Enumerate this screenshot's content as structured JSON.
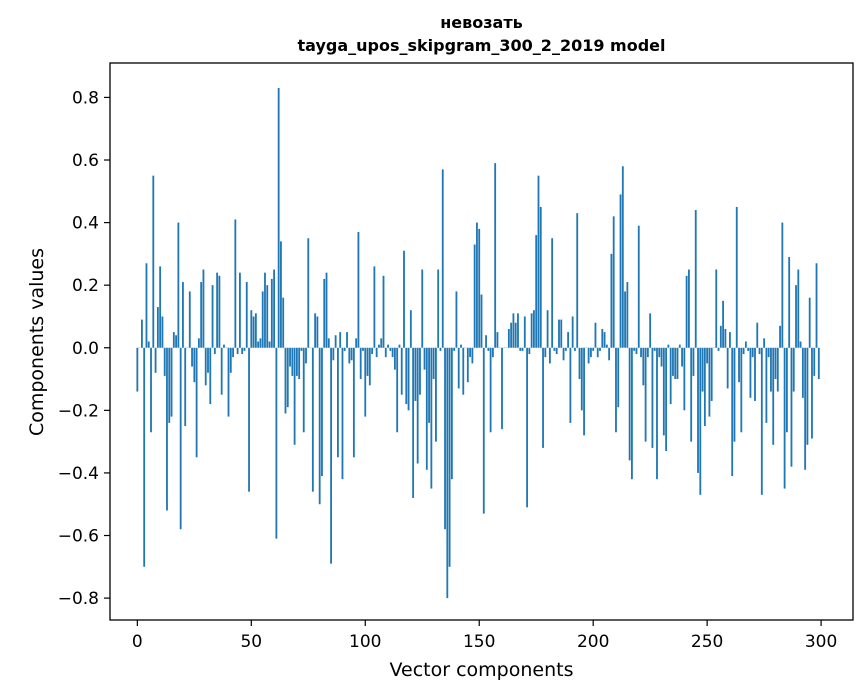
{
  "chart_data": {
    "type": "bar",
    "title_lines": [
      "невозать",
      "tayga_upos_skipgram_300_2_2019 model"
    ],
    "xlabel": "Vector components",
    "ylabel": "Components values",
    "xlim": [
      -12,
      314
    ],
    "ylim": [
      -0.87,
      0.91
    ],
    "xticks": [
      0,
      50,
      100,
      150,
      200,
      250,
      300
    ],
    "xtick_labels": [
      "0",
      "50",
      "100",
      "150",
      "200",
      "250",
      "300"
    ],
    "yticks": [
      -0.8,
      -0.6,
      -0.4,
      -0.2,
      0.0,
      0.2,
      0.4,
      0.6,
      0.8
    ],
    "ytick_labels": [
      "−0.8",
      "−0.6",
      "−0.4",
      "−0.2",
      "0.0",
      "0.2",
      "0.4",
      "0.6",
      "0.8"
    ],
    "grid": false,
    "bar_color": "#1f77b4",
    "values": [
      -0.14,
      0.0,
      0.09,
      -0.7,
      0.27,
      0.02,
      -0.27,
      0.55,
      -0.08,
      0.13,
      0.26,
      0.1,
      -0.09,
      -0.52,
      -0.24,
      -0.22,
      0.05,
      0.04,
      0.4,
      -0.58,
      0.21,
      -0.25,
      0.0,
      0.18,
      -0.06,
      -0.11,
      -0.35,
      0.03,
      0.21,
      0.25,
      -0.12,
      -0.08,
      -0.18,
      0.2,
      -0.02,
      0.24,
      0.23,
      -0.15,
      0.01,
      0.0,
      -0.22,
      -0.08,
      -0.03,
      0.41,
      -0.02,
      0.24,
      -0.02,
      -0.01,
      0.21,
      -0.46,
      0.12,
      0.1,
      0.11,
      0.02,
      0.03,
      0.18,
      0.24,
      0.2,
      0.02,
      0.22,
      0.25,
      -0.61,
      0.83,
      0.34,
      0.16,
      -0.21,
      -0.19,
      -0.06,
      -0.09,
      -0.31,
      -0.09,
      -0.1,
      -0.01,
      -0.27,
      -0.05,
      0.35,
      0.0,
      -0.46,
      0.11,
      0.1,
      -0.5,
      -0.41,
      0.22,
      0.24,
      0.03,
      -0.69,
      -0.04,
      0.04,
      -0.35,
      0.05,
      -0.42,
      -0.01,
      0.05,
      -0.05,
      -0.04,
      -0.35,
      0.03,
      0.37,
      -0.1,
      -0.01,
      -0.22,
      -0.09,
      -0.12,
      -0.02,
      0.26,
      -0.03,
      0.01,
      0.03,
      0.23,
      -0.03,
      0.01,
      -0.01,
      -0.03,
      -0.07,
      -0.27,
      0.01,
      -0.15,
      0.31,
      -0.18,
      -0.2,
      0.12,
      -0.48,
      -0.17,
      -0.37,
      -0.15,
      0.25,
      -0.07,
      -0.39,
      -0.24,
      -0.45,
      -0.1,
      -0.3,
      0.25,
      -0.01,
      0.57,
      -0.58,
      -0.8,
      -0.7,
      -0.42,
      -0.01,
      0.18,
      -0.13,
      0.01,
      -0.15,
      0.0,
      -0.11,
      -0.03,
      -0.05,
      0.33,
      0.4,
      0.38,
      0.17,
      -0.53,
      0.04,
      -0.01,
      -0.27,
      -0.03,
      0.59,
      0.05,
      0.0,
      -0.26,
      0.0,
      0.0,
      0.06,
      0.08,
      0.11,
      0.08,
      0.11,
      -0.01,
      -0.01,
      0.1,
      -0.51,
      -0.02,
      0.11,
      0.12,
      0.36,
      0.55,
      0.45,
      -0.32,
      -0.03,
      0.12,
      -0.05,
      0.35,
      -0.01,
      -0.02,
      0.09,
      0.09,
      -0.04,
      -0.01,
      0.05,
      -0.24,
      0.1,
      -0.01,
      0.43,
      -0.1,
      -0.2,
      -0.28,
      0.0,
      -0.05,
      -0.03,
      -0.01,
      0.08,
      -0.03,
      -0.01,
      0.06,
      0.05,
      0.01,
      -0.04,
      0.3,
      0.42,
      -0.27,
      -0.19,
      0.49,
      0.58,
      0.18,
      0.21,
      -0.36,
      -0.42,
      -0.01,
      -0.02,
      0.39,
      -0.03,
      -0.12,
      -0.3,
      -0.03,
      0.11,
      -0.32,
      -0.01,
      -0.42,
      -0.03,
      -0.06,
      -0.28,
      -0.33,
      0.01,
      -0.18,
      -0.09,
      -0.1,
      -0.1,
      0.01,
      -0.06,
      -0.2,
      0.23,
      0.25,
      -0.3,
      -0.09,
      0.44,
      -0.4,
      -0.47,
      -0.14,
      -0.25,
      -0.05,
      -0.22,
      -0.17,
      0.0,
      0.25,
      -0.01,
      0.07,
      0.15,
      0.06,
      -0.13,
      0.05,
      -0.41,
      -0.3,
      0.45,
      -0.11,
      -0.27,
      -0.02,
      0.02,
      -0.01,
      -0.16,
      -0.03,
      -0.17,
      0.08,
      -0.02,
      -0.47,
      0.03,
      -0.24,
      -0.03,
      -0.14,
      -0.31,
      -0.1,
      -0.14,
      0.07,
      0.4,
      -0.45,
      -0.27,
      0.29,
      -0.38,
      -0.14,
      0.2,
      0.25,
      0.02,
      -0.16,
      -0.39,
      -0.31,
      0.16,
      -0.29,
      -0.09,
      0.27,
      -0.1
    ]
  }
}
